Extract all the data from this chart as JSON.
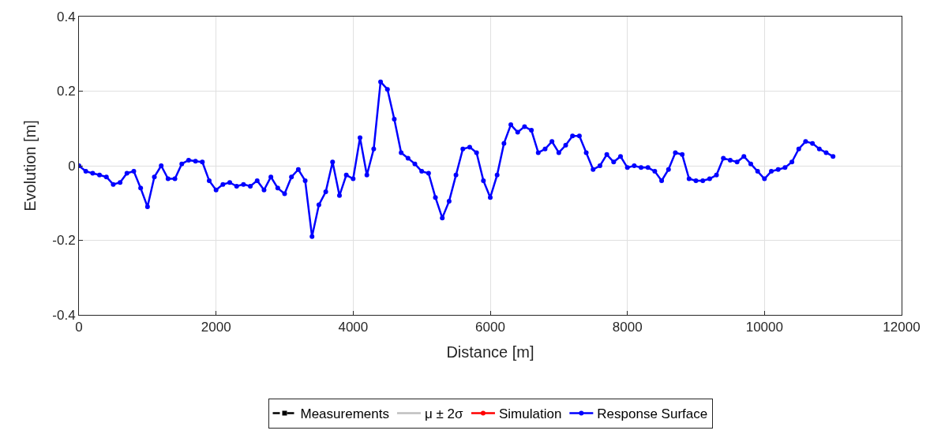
{
  "chart_data": {
    "type": "line",
    "xlabel": "Distance [m]",
    "ylabel": "Evolution [m]",
    "x": [
      0,
      100,
      200,
      300,
      400,
      500,
      600,
      700,
      800,
      900,
      1000,
      1100,
      1200,
      1300,
      1400,
      1500,
      1600,
      1700,
      1800,
      1900,
      2000,
      2100,
      2200,
      2300,
      2400,
      2500,
      2600,
      2700,
      2800,
      2900,
      3000,
      3100,
      3200,
      3300,
      3400,
      3500,
      3600,
      3700,
      3800,
      3900,
      4000,
      4100,
      4200,
      4300,
      4400,
      4500,
      4600,
      4700,
      4800,
      4900,
      5000,
      5100,
      5200,
      5300,
      5400,
      5500,
      5600,
      5700,
      5800,
      5900,
      6000,
      6100,
      6200,
      6300,
      6400,
      6500,
      6600,
      6700,
      6800,
      6900,
      7000,
      7100,
      7200,
      7300,
      7400,
      7500,
      7600,
      7700,
      7800,
      7900,
      8000,
      8100,
      8200,
      8300,
      8400,
      8500,
      8600,
      8700,
      8800,
      8900,
      9000,
      9100,
      9200,
      9300,
      9400,
      9500,
      9600,
      9700,
      9800,
      9900,
      10000,
      10100,
      10200,
      10300,
      10400,
      10500,
      10600,
      10700,
      10800,
      10900,
      11000
    ],
    "series": [
      {
        "name": "Measurements",
        "color": "#000000",
        "line_style": "dashed",
        "marker": "square",
        "values": [
          null,
          null,
          null,
          null,
          null,
          null,
          null,
          null,
          null,
          null,
          null,
          null,
          null,
          null,
          null,
          null,
          null,
          null,
          null,
          null,
          null,
          null,
          null,
          null,
          null,
          null,
          null,
          null,
          null,
          null,
          null,
          null,
          null,
          null,
          null,
          null,
          null,
          null,
          null,
          null,
          null,
          null,
          null,
          null,
          null,
          null,
          null,
          null,
          null,
          null,
          null,
          null,
          null,
          null,
          null,
          null,
          null,
          null,
          null,
          null,
          null,
          null,
          null,
          null,
          null,
          null,
          null,
          null,
          null,
          null,
          null,
          null,
          null,
          null,
          null,
          null,
          null,
          null,
          null,
          null,
          null,
          null,
          null,
          null,
          null,
          null,
          null,
          null,
          null,
          null,
          null,
          null,
          null,
          null,
          null,
          null,
          null,
          null,
          null,
          null,
          null,
          null,
          null,
          null,
          null,
          null,
          null,
          null,
          null,
          null,
          null
        ]
      },
      {
        "name": "μ ± 2σ",
        "color": "#bfbfbf",
        "marker": "none",
        "values": [
          null,
          null,
          null,
          null,
          null,
          null,
          null,
          null,
          null,
          null,
          null,
          null,
          null,
          null,
          null,
          null,
          null,
          null,
          null,
          null,
          null,
          null,
          null,
          null,
          null,
          null,
          null,
          null,
          null,
          null,
          null,
          null,
          null,
          null,
          null,
          null,
          null,
          null,
          null,
          null,
          null,
          null,
          null,
          null,
          null,
          null,
          null,
          null,
          null,
          null,
          null,
          null,
          null,
          null,
          null,
          null,
          null,
          null,
          null,
          null,
          null,
          null,
          null,
          null,
          null,
          null,
          null,
          null,
          null,
          null,
          null,
          null,
          null,
          null,
          null,
          null,
          null,
          null,
          null,
          null,
          null,
          null,
          null,
          null,
          null,
          null,
          null,
          null,
          null,
          null,
          null,
          null,
          null,
          null,
          null,
          null,
          null,
          null,
          null,
          null,
          null,
          null,
          null,
          null,
          null,
          null,
          null,
          null,
          null,
          null,
          null
        ]
      },
      {
        "name": "Simulation",
        "color": "#ff0000",
        "marker": "circle",
        "values": [
          null,
          null,
          null,
          null,
          null,
          null,
          null,
          null,
          null,
          null,
          null,
          null,
          null,
          null,
          null,
          null,
          null,
          null,
          null,
          null,
          null,
          null,
          null,
          null,
          null,
          null,
          null,
          null,
          null,
          null,
          null,
          null,
          null,
          null,
          null,
          null,
          null,
          null,
          null,
          null,
          null,
          null,
          null,
          null,
          null,
          null,
          null,
          null,
          null,
          null,
          null,
          null,
          null,
          null,
          null,
          null,
          null,
          null,
          null,
          null,
          null,
          null,
          null,
          null,
          null,
          null,
          null,
          null,
          null,
          null,
          null,
          null,
          null,
          null,
          null,
          null,
          null,
          null,
          null,
          null,
          null,
          null,
          null,
          null,
          null,
          null,
          null,
          null,
          null,
          null,
          null,
          null,
          null,
          null,
          null,
          null,
          null,
          null,
          null,
          null,
          null,
          null,
          null,
          null,
          null,
          null,
          null,
          null,
          null,
          null,
          null
        ]
      },
      {
        "name": "Response Surface",
        "color": "#0000ff",
        "marker": "circle",
        "values": [
          0,
          -0.015,
          -0.02,
          -0.025,
          -0.03,
          -0.05,
          -0.045,
          -0.02,
          -0.015,
          -0.06,
          -0.11,
          -0.03,
          0,
          -0.035,
          -0.035,
          0.005,
          0.015,
          0.012,
          0.01,
          -0.04,
          -0.065,
          -0.05,
          -0.045,
          -0.055,
          -0.05,
          -0.055,
          -0.04,
          -0.065,
          -0.03,
          -0.06,
          -0.075,
          -0.03,
          -0.01,
          -0.04,
          -0.19,
          -0.105,
          -0.07,
          0.01,
          -0.08,
          -0.025,
          -0.035,
          0.075,
          -0.025,
          0.045,
          0.225,
          0.205,
          0.125,
          0.035,
          0.02,
          0.005,
          -0.015,
          -0.02,
          -0.085,
          -0.14,
          -0.095,
          -0.025,
          0.045,
          0.05,
          0.035,
          -0.04,
          -0.085,
          -0.025,
          0.06,
          0.11,
          0.09,
          0.105,
          0.095,
          0.035,
          0.045,
          0.065,
          0.035,
          0.055,
          0.08,
          0.08,
          0.035,
          -0.01,
          0,
          0.03,
          0.01,
          0.025,
          -0.005,
          0,
          -0.005,
          -0.005,
          -0.015,
          -0.04,
          -0.01,
          0.035,
          0.03,
          -0.035,
          -0.04,
          -0.04,
          -0.035,
          -0.025,
          0.02,
          0.015,
          0.01,
          0.025,
          0.005,
          -0.015,
          -0.035,
          -0.015,
          -0.01,
          -0.005,
          0.01,
          0.045,
          0.065,
          0.06,
          0.045,
          0.035,
          0.025
        ]
      }
    ],
    "xlim": [
      0,
      12000
    ],
    "xticks": [
      0,
      2000,
      4000,
      6000,
      8000,
      10000,
      12000
    ],
    "ylim": [
      -0.4,
      0.4
    ],
    "yticks": [
      {
        "value": -0.4,
        "label": "-0.4"
      },
      {
        "value": -0.2,
        "label": "-0.2"
      },
      0,
      0.2,
      0.4
    ],
    "grid": true,
    "legend": "bottom",
    "line_style": "solid"
  }
}
